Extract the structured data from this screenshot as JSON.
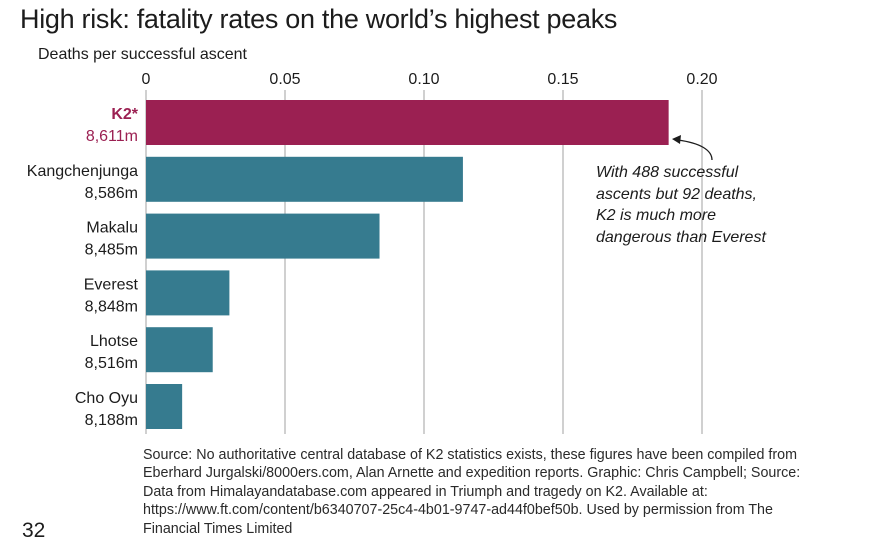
{
  "page": {
    "number": "32"
  },
  "chart_data": {
    "type": "bar",
    "orientation": "horizontal",
    "title": "High risk: fatality rates on the world’s highest peaks",
    "xlabel": "Deaths per successful ascent",
    "ylabel": "",
    "xlim": [
      0,
      0.2
    ],
    "xticks": [
      0,
      0.05,
      0.1,
      0.15,
      0.2
    ],
    "xtick_labels": [
      "0",
      "0.05",
      "0.10",
      "0.15",
      "0.20"
    ],
    "grid": true,
    "categories": [
      {
        "name": "K2*",
        "height": "8,611m",
        "highlight": true
      },
      {
        "name": "Kangchenjunga",
        "height": "8,586m",
        "highlight": false
      },
      {
        "name": "Makalu",
        "height": "8,485m",
        "highlight": false
      },
      {
        "name": "Everest",
        "height": "8,848m",
        "highlight": false
      },
      {
        "name": "Lhotse",
        "height": "8,516m",
        "highlight": false
      },
      {
        "name": "Cho Oyu",
        "height": "8,188m",
        "highlight": false
      }
    ],
    "values": [
      0.188,
      0.114,
      0.084,
      0.03,
      0.024,
      0.013
    ],
    "colors": {
      "highlight": "#9b2052",
      "default": "#367b8f",
      "grid": "#b0b0b0"
    },
    "annotation": {
      "target": "K2*",
      "lines": [
        "With 488 successful",
        "ascents but 92 deaths,",
        "K2 is much more",
        "dangerous than Everest"
      ]
    },
    "source": "Source: No authoritative central database of K2 statistics exists, these figures have been compiled from Eberhard Jurgalski/8000ers.com, Alan Arnette and expedition reports. Graphic: Chris Campbell; Source: Data from Himalayandatabase.com appeared in Triumph and tragedy on K2. Available at: https://www.ft.com/content/b6340707-25c4-4b01-9747-ad44f0bef50b. Used by permission from The Financial Times Limited"
  }
}
